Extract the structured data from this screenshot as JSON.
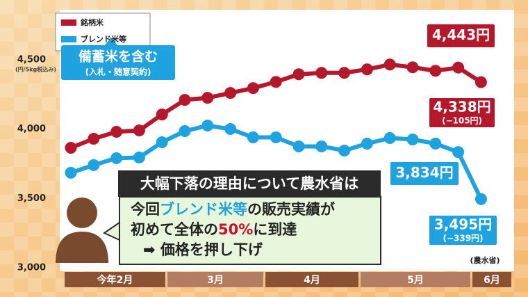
{
  "chart_data": {
    "type": "line",
    "y_axis_label": "(円/5kg税込み)",
    "categories": [
      null,
      null,
      null,
      null,
      null,
      null,
      null,
      null,
      null,
      null,
      null,
      null,
      null,
      null,
      null,
      null,
      null,
      null,
      null
    ],
    "x_groups": [
      "今年2月",
      "3月",
      "4月",
      "5月",
      "6月"
    ],
    "ylim": [
      3000,
      4860
    ],
    "yticks": [
      {
        "value": 3000,
        "label": "3,000"
      },
      {
        "value": 3500,
        "label": "3,500"
      },
      {
        "value": 4000,
        "label": "4,000"
      },
      {
        "value": 4500,
        "label": "4,500"
      }
    ],
    "series": [
      {
        "name": "銘柄米",
        "color": "#b5182b",
        "values": [
          3865,
          3930,
          3980,
          3990,
          4105,
          4210,
          4225,
          4260,
          4295,
          4340,
          4395,
          4405,
          4405,
          4430,
          4465,
          4445,
          4420,
          4443,
          4338
        ],
        "value_labels": [
          null,
          null,
          null,
          null,
          null,
          null,
          null,
          null,
          null,
          null,
          null,
          null,
          null,
          null,
          null,
          null,
          null,
          "4,443円",
          "4,338円"
        ]
      },
      {
        "name": "ブレンド米等",
        "color": "#1ea3e0",
        "values": [
          3685,
          3740,
          3790,
          3795,
          3905,
          3985,
          4025,
          4000,
          3940,
          3940,
          3875,
          3875,
          3845,
          3895,
          3935,
          3925,
          3895,
          3834,
          3495
        ],
        "value_labels": [
          null,
          null,
          null,
          null,
          null,
          null,
          null,
          null,
          null,
          null,
          null,
          null,
          null,
          null,
          null,
          null,
          null,
          "3,834円",
          "3,495円"
        ]
      }
    ],
    "annotations": {
      "stockpile_note": "備蓄米を含む",
      "stockpile_sub": "(入札・随意契約)",
      "brand_change": "(−105円)",
      "blend_change": "(−339円)",
      "source": "(農水省)",
      "caption_title": "大幅下落の理由について農水省は",
      "caption_lines": [
        [
          "今回",
          "ブレンド米等",
          "の販売実績が"
        ],
        [
          "初めて全体の",
          "50%",
          "に到達"
        ],
        [
          "➡ 価格を押し下げ"
        ]
      ],
      "caption_highlight_colors": [
        "#1ea3e0",
        "#c8102e"
      ]
    }
  }
}
